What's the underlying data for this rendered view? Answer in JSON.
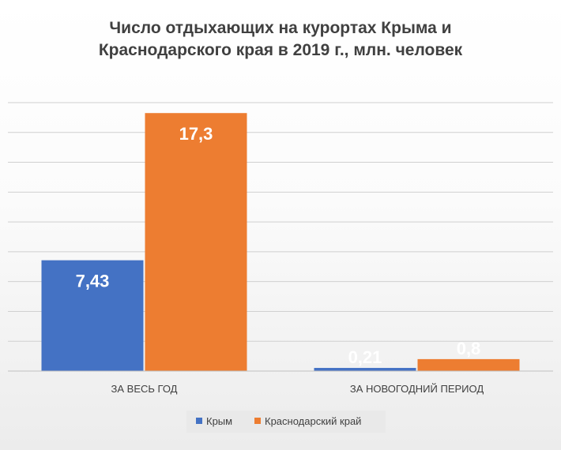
{
  "chart_data": {
    "type": "bar",
    "title_lines": [
      "Число отдыхающих на курортах Крыма и",
      "Краснодарского края в 2019 г., млн. человек"
    ],
    "categories": [
      "ЗА ВЕСЬ ГОД",
      "ЗА НОВОГОДНИЙ ПЕРИОД"
    ],
    "series": [
      {
        "name": "Крым",
        "color": "#4472c4",
        "values": [
          7.43,
          0.21
        ],
        "labels": [
          "7,43",
          "0,21"
        ]
      },
      {
        "name": "Краснодарский край",
        "color": "#ed7d31",
        "values": [
          17.3,
          0.8
        ],
        "labels": [
          "17,3",
          "0,8"
        ]
      }
    ],
    "ylim": [
      0,
      18
    ],
    "grid": true,
    "legend_position": "bottom",
    "xlabel": "",
    "ylabel": ""
  }
}
